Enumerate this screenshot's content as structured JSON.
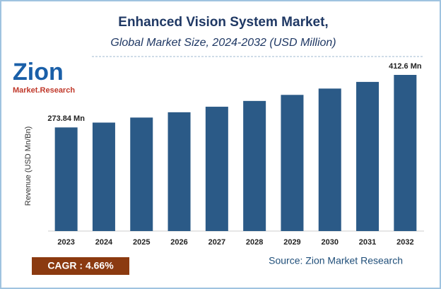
{
  "chart_data": {
    "type": "bar",
    "title": "Enhanced Vision System Market,",
    "subtitle": "Global Market Size, 2024-2032 (USD Million)",
    "y_label": "Revenue (USD Mn/Bn)",
    "categories": [
      "2023",
      "2024",
      "2025",
      "2026",
      "2027",
      "2028",
      "2029",
      "2030",
      "2031",
      "2032"
    ],
    "values": [
      273.84,
      286.6,
      299.9,
      313.9,
      328.5,
      343.8,
      359.8,
      376.5,
      394.1,
      412.6
    ],
    "value_labels": [
      "273.84 Mn",
      null,
      null,
      null,
      null,
      null,
      null,
      null,
      null,
      "412.6 Mn"
    ],
    "color": "#2b5a87"
  },
  "logo": {
    "name": "Zion",
    "tagline": "Market.Research"
  },
  "cagr": "CAGR :  4.66%",
  "source": "Source: Zion Market Research"
}
